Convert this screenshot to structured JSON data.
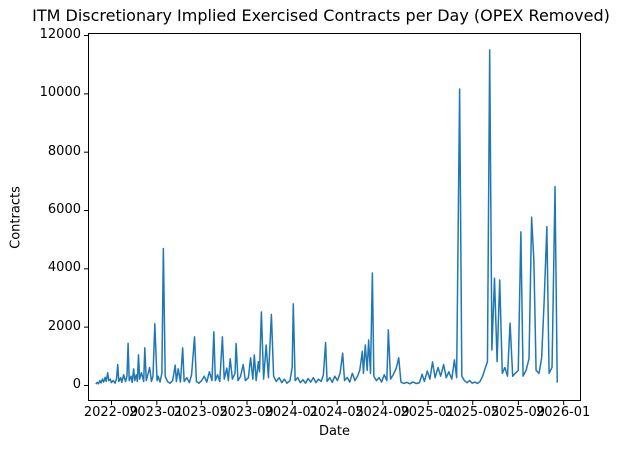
{
  "figure": {
    "title": "ITM Discretionary Implied Exercised Contracts per Day (OPEX Removed)",
    "xlabel": "Date",
    "ylabel": "Contracts"
  },
  "chart_data": {
    "type": "line",
    "title": "ITM Discretionary Implied Exercised Contracts per Day (OPEX Removed)",
    "xlabel": "Date",
    "ylabel": "Contracts",
    "grid": false,
    "legend": null,
    "line_color": "#1f77b4",
    "background_color": "#ffffff",
    "spine_color": "#000000",
    "xlim": [
      "2022-07-01",
      "2026-02-18"
    ],
    "ylim": [
      -550,
      12070
    ],
    "x_ticks": [
      {
        "date": "2022-09-01",
        "label": "2022-09"
      },
      {
        "date": "2023-01-01",
        "label": "2023-01"
      },
      {
        "date": "2023-05-01",
        "label": "2023-05"
      },
      {
        "date": "2023-09-01",
        "label": "2023-09"
      },
      {
        "date": "2024-01-01",
        "label": "2024-01"
      },
      {
        "date": "2024-05-01",
        "label": "2024-05"
      },
      {
        "date": "2024-09-01",
        "label": "2024-09"
      },
      {
        "date": "2025-01-01",
        "label": "2025-01"
      },
      {
        "date": "2025-05-01",
        "label": "2025-05"
      },
      {
        "date": "2025-09-01",
        "label": "2025-09"
      },
      {
        "date": "2026-01-01",
        "label": "2026-01"
      }
    ],
    "y_ticks": [
      0,
      2000,
      4000,
      6000,
      8000,
      10000,
      12000
    ],
    "points": [
      [
        "2022-07-22",
        30
      ],
      [
        "2022-07-26",
        90
      ],
      [
        "2022-07-29",
        40
      ],
      [
        "2022-08-02",
        150
      ],
      [
        "2022-08-05",
        70
      ],
      [
        "2022-08-09",
        200
      ],
      [
        "2022-08-12",
        100
      ],
      [
        "2022-08-16",
        260
      ],
      [
        "2022-08-19",
        120
      ],
      [
        "2022-08-23",
        420
      ],
      [
        "2022-08-26",
        150
      ],
      [
        "2022-08-30",
        200
      ],
      [
        "2022-09-02",
        80
      ],
      [
        "2022-09-07",
        150
      ],
      [
        "2022-09-12",
        60
      ],
      [
        "2022-09-16",
        230
      ],
      [
        "2022-09-19",
        700
      ],
      [
        "2022-09-22",
        120
      ],
      [
        "2022-09-27",
        250
      ],
      [
        "2022-09-30",
        90
      ],
      [
        "2022-10-05",
        350
      ],
      [
        "2022-10-10",
        120
      ],
      [
        "2022-10-14",
        300
      ],
      [
        "2022-10-17",
        1430
      ],
      [
        "2022-10-20",
        150
      ],
      [
        "2022-10-25",
        300
      ],
      [
        "2022-10-28",
        90
      ],
      [
        "2022-11-01",
        550
      ],
      [
        "2022-11-04",
        150
      ],
      [
        "2022-11-08",
        350
      ],
      [
        "2022-11-11",
        120
      ],
      [
        "2022-11-14",
        1030
      ],
      [
        "2022-11-17",
        200
      ],
      [
        "2022-11-22",
        420
      ],
      [
        "2022-11-28",
        120
      ],
      [
        "2022-12-01",
        1270
      ],
      [
        "2022-12-05",
        150
      ],
      [
        "2022-12-09",
        350
      ],
      [
        "2022-12-14",
        600
      ],
      [
        "2022-12-19",
        120
      ],
      [
        "2022-12-23",
        300
      ],
      [
        "2022-12-28",
        2100
      ],
      [
        "2023-01-03",
        150
      ],
      [
        "2023-01-06",
        300
      ],
      [
        "2023-01-11",
        100
      ],
      [
        "2023-01-16",
        400
      ],
      [
        "2023-01-20",
        4680
      ],
      [
        "2023-01-25",
        300
      ],
      [
        "2023-01-31",
        120
      ],
      [
        "2023-02-07",
        60
      ],
      [
        "2023-02-14",
        150
      ],
      [
        "2023-02-21",
        680
      ],
      [
        "2023-02-24",
        120
      ],
      [
        "2023-03-01",
        550
      ],
      [
        "2023-03-07",
        100
      ],
      [
        "2023-03-13",
        1270
      ],
      [
        "2023-03-17",
        120
      ],
      [
        "2023-03-24",
        250
      ],
      [
        "2023-03-31",
        80
      ],
      [
        "2023-04-06",
        350
      ],
      [
        "2023-04-14",
        1650
      ],
      [
        "2023-04-19",
        120
      ],
      [
        "2023-04-26",
        60
      ],
      [
        "2023-05-03",
        150
      ],
      [
        "2023-05-10",
        300
      ],
      [
        "2023-05-17",
        100
      ],
      [
        "2023-05-24",
        450
      ],
      [
        "2023-05-31",
        150
      ],
      [
        "2023-06-05",
        1820
      ],
      [
        "2023-06-09",
        150
      ],
      [
        "2023-06-15",
        350
      ],
      [
        "2023-06-21",
        120
      ],
      [
        "2023-06-28",
        1650
      ],
      [
        "2023-07-03",
        200
      ],
      [
        "2023-07-10",
        580
      ],
      [
        "2023-07-14",
        150
      ],
      [
        "2023-07-19",
        900
      ],
      [
        "2023-07-25",
        200
      ],
      [
        "2023-08-01",
        400
      ],
      [
        "2023-08-04",
        1420
      ],
      [
        "2023-08-09",
        150
      ],
      [
        "2023-08-16",
        300
      ],
      [
        "2023-08-23",
        700
      ],
      [
        "2023-08-29",
        150
      ],
      [
        "2023-09-06",
        250
      ],
      [
        "2023-09-12",
        930
      ],
      [
        "2023-09-18",
        200
      ],
      [
        "2023-09-22",
        1030
      ],
      [
        "2023-09-27",
        150
      ],
      [
        "2023-10-03",
        800
      ],
      [
        "2023-10-06",
        450
      ],
      [
        "2023-10-11",
        2500
      ],
      [
        "2023-10-17",
        200
      ],
      [
        "2023-10-24",
        1370
      ],
      [
        "2023-10-30",
        250
      ],
      [
        "2023-11-07",
        2420
      ],
      [
        "2023-11-13",
        300
      ],
      [
        "2023-11-20",
        120
      ],
      [
        "2023-11-28",
        250
      ],
      [
        "2023-12-05",
        80
      ],
      [
        "2023-12-12",
        200
      ],
      [
        "2023-12-19",
        60
      ],
      [
        "2023-12-27",
        150
      ],
      [
        "2024-01-02",
        600
      ],
      [
        "2024-01-05",
        2780
      ],
      [
        "2024-01-10",
        150
      ],
      [
        "2024-01-17",
        250
      ],
      [
        "2024-01-24",
        80
      ],
      [
        "2024-01-31",
        180
      ],
      [
        "2024-02-07",
        60
      ],
      [
        "2024-02-14",
        220
      ],
      [
        "2024-02-21",
        100
      ],
      [
        "2024-02-28",
        250
      ],
      [
        "2024-03-06",
        80
      ],
      [
        "2024-03-13",
        200
      ],
      [
        "2024-03-20",
        120
      ],
      [
        "2024-03-26",
        340
      ],
      [
        "2024-04-01",
        1450
      ],
      [
        "2024-04-05",
        120
      ],
      [
        "2024-04-12",
        250
      ],
      [
        "2024-04-19",
        90
      ],
      [
        "2024-04-26",
        300
      ],
      [
        "2024-05-03",
        150
      ],
      [
        "2024-05-10",
        400
      ],
      [
        "2024-05-17",
        1090
      ],
      [
        "2024-05-22",
        150
      ],
      [
        "2024-05-29",
        260
      ],
      [
        "2024-06-05",
        100
      ],
      [
        "2024-06-12",
        400
      ],
      [
        "2024-06-19",
        150
      ],
      [
        "2024-06-26",
        300
      ],
      [
        "2024-07-02",
        500
      ],
      [
        "2024-07-09",
        1150
      ],
      [
        "2024-07-12",
        400
      ],
      [
        "2024-07-17",
        1370
      ],
      [
        "2024-07-22",
        500
      ],
      [
        "2024-07-26",
        1540
      ],
      [
        "2024-07-31",
        400
      ],
      [
        "2024-08-05",
        3840
      ],
      [
        "2024-08-09",
        300
      ],
      [
        "2024-08-16",
        150
      ],
      [
        "2024-08-23",
        250
      ],
      [
        "2024-08-30",
        100
      ],
      [
        "2024-09-06",
        350
      ],
      [
        "2024-09-13",
        150
      ],
      [
        "2024-09-17",
        1890
      ],
      [
        "2024-09-23",
        200
      ],
      [
        "2024-09-30",
        350
      ],
      [
        "2024-10-08",
        560
      ],
      [
        "2024-10-15",
        930
      ],
      [
        "2024-10-21",
        100
      ],
      [
        "2024-10-29",
        50
      ],
      [
        "2024-11-06",
        90
      ],
      [
        "2024-11-14",
        40
      ],
      [
        "2024-11-22",
        100
      ],
      [
        "2024-12-02",
        50
      ],
      [
        "2024-12-10",
        80
      ],
      [
        "2024-12-17",
        370
      ],
      [
        "2024-12-23",
        120
      ],
      [
        "2024-12-31",
        480
      ],
      [
        "2025-01-07",
        200
      ],
      [
        "2025-01-14",
        790
      ],
      [
        "2025-01-21",
        250
      ],
      [
        "2025-01-29",
        600
      ],
      [
        "2025-02-05",
        300
      ],
      [
        "2025-02-13",
        700
      ],
      [
        "2025-02-20",
        250
      ],
      [
        "2025-02-27",
        450
      ],
      [
        "2025-03-07",
        200
      ],
      [
        "2025-03-14",
        860
      ],
      [
        "2025-03-20",
        250
      ],
      [
        "2025-03-28",
        10150
      ],
      [
        "2025-04-03",
        300
      ],
      [
        "2025-04-10",
        150
      ],
      [
        "2025-04-17",
        80
      ],
      [
        "2025-04-24",
        150
      ],
      [
        "2025-05-01",
        60
      ],
      [
        "2025-05-08",
        100
      ],
      [
        "2025-05-15",
        50
      ],
      [
        "2025-05-22",
        120
      ],
      [
        "2025-05-29",
        300
      ],
      [
        "2025-06-05",
        580
      ],
      [
        "2025-06-11",
        800
      ],
      [
        "2025-06-17",
        11490
      ],
      [
        "2025-06-23",
        1200
      ],
      [
        "2025-06-30",
        3660
      ],
      [
        "2025-07-07",
        800
      ],
      [
        "2025-07-14",
        3600
      ],
      [
        "2025-07-21",
        400
      ],
      [
        "2025-07-28",
        600
      ],
      [
        "2025-08-04",
        300
      ],
      [
        "2025-08-11",
        2120
      ],
      [
        "2025-08-18",
        300
      ],
      [
        "2025-08-25",
        400
      ],
      [
        "2025-09-02",
        500
      ],
      [
        "2025-09-09",
        5250
      ],
      [
        "2025-09-15",
        300
      ],
      [
        "2025-09-23",
        500
      ],
      [
        "2025-10-01",
        900
      ],
      [
        "2025-10-08",
        5750
      ],
      [
        "2025-10-14",
        4290
      ],
      [
        "2025-10-20",
        500
      ],
      [
        "2025-10-28",
        400
      ],
      [
        "2025-11-04",
        930
      ],
      [
        "2025-11-11",
        2950
      ],
      [
        "2025-11-18",
        5430
      ],
      [
        "2025-11-24",
        400
      ],
      [
        "2025-12-02",
        600
      ],
      [
        "2025-12-10",
        6800
      ],
      [
        "2025-12-16",
        80
      ]
    ]
  }
}
